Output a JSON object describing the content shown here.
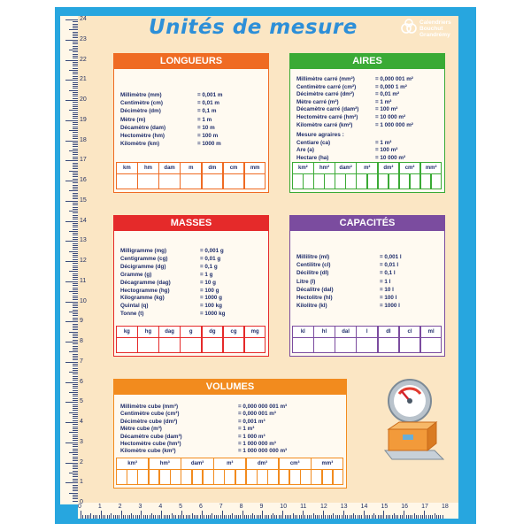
{
  "title": "Unités de mesure",
  "logo": [
    "Calendriers",
    "Bouchut",
    "Grandrémy"
  ],
  "sections": [
    {
      "heading": "LONGUEURS",
      "rows": [
        [
          "Millimètre (mm)",
          "= 0,001 m"
        ],
        [
          "Centimètre (cm)",
          "= 0,01 m"
        ],
        [
          "Décimètre  (dm)",
          "= 0,1 m"
        ],
        [
          "Mètre  (m)",
          "= 1 m"
        ],
        [
          "Décamètre  (dam)",
          "= 10 m"
        ],
        [
          "Hectomètre  (hm)",
          "= 100 m"
        ],
        [
          "Kilomètre  (km)",
          "= 1000 m"
        ]
      ],
      "columns": [
        "km",
        "hm",
        "dam",
        "m",
        "dm",
        "cm",
        "mm"
      ]
    },
    {
      "heading": "AIRES",
      "rows": [
        [
          "Millimètre carré (mm²)",
          "= 0,000 001 m²"
        ],
        [
          "Centimètre carré (cm²)",
          "= 0,000 1 m²"
        ],
        [
          "Décimètre carré (dm²)",
          "= 0,01 m²"
        ],
        [
          "Mètre carré  (m²)",
          "= 1 m²"
        ],
        [
          "Décamètre carré  (dam²)",
          "= 100 m²"
        ],
        [
          "Hectomètre carré (hm²)",
          "= 10 000 m²"
        ],
        [
          "Kilomètre carré  (km²)",
          "= 1 000 000 m²"
        ]
      ],
      "subheading": "Mesure agraires :",
      "extra_rows": [
        [
          "Centiare (ca)",
          "= 1 m²"
        ],
        [
          "Are (a)",
          "= 100 m²"
        ],
        [
          "Hectare (ha)",
          "= 10 000 m²"
        ]
      ],
      "columns": [
        "km²",
        "hm²",
        "dam²",
        "m²",
        "dm²",
        "cm²",
        "mm²"
      ]
    },
    {
      "heading": "MASSES",
      "rows": [
        [
          "Milligramme (mg)",
          "= 0,001 g"
        ],
        [
          "Centigramme (cg)",
          "= 0,01 g"
        ],
        [
          "Décigramme (dg)",
          "= 0,1 g"
        ],
        [
          "Gramme (g)",
          "= 1 g"
        ],
        [
          "Décagramme (dag)",
          "= 10 g"
        ],
        [
          "Hectogramme (hg)",
          "= 100 g"
        ],
        [
          "Kilogramme (kg)",
          "= 1000 g"
        ],
        [
          "Quintal (q)",
          "= 100 kg"
        ],
        [
          "Tonne (t)",
          "= 1000 kg"
        ]
      ],
      "columns": [
        "kg",
        "hg",
        "dag",
        "g",
        "dg",
        "cg",
        "mg"
      ]
    },
    {
      "heading": "CAPACITÉS",
      "rows": [
        [
          "Millilitre (ml)",
          "= 0,001 l"
        ],
        [
          "Centilitre (cl)",
          "= 0,01 l"
        ],
        [
          "Décilitre (dl)",
          "= 0,1 l"
        ],
        [
          "Litre (l)",
          "= 1 l"
        ],
        [
          "Décalitre (dal)",
          "= 10 l"
        ],
        [
          "Hectolitre (hl)",
          "= 100 l"
        ],
        [
          "Kilolitre (kl)",
          "= 1000 l"
        ]
      ],
      "columns": [
        "kl",
        "hl",
        "dal",
        "l",
        "dl",
        "cl",
        "ml"
      ]
    },
    {
      "heading": "VOLUMES",
      "rows": [
        [
          "Millimètre cube (mm³)",
          "= 0,000 000 001 m³"
        ],
        [
          "Centimètre cube (cm³)",
          "= 0,000 001 m³"
        ],
        [
          "Décimètre cube (dm³)",
          "= 0,001 m³"
        ],
        [
          "Mètre cube (m³)",
          "= 1 m³"
        ],
        [
          "Décamètre cube (dam³)",
          "= 1 000 m³"
        ],
        [
          "Hectomètre cube (hm³)",
          "= 1 000 000 m³"
        ],
        [
          "Kilomètre cube (km³)",
          "= 1 000 000 000 m³"
        ]
      ],
      "columns": [
        "km³",
        "hm³",
        "dam³",
        "m³",
        "dm³",
        "cm³",
        "mm³"
      ]
    }
  ],
  "ruler": {
    "left": [
      "24",
      "23",
      "22",
      "21",
      "20",
      "19",
      "18",
      "17",
      "16",
      "15",
      "14",
      "13",
      "12",
      "11",
      "10",
      "9",
      "8",
      "7",
      "6",
      "5",
      "4",
      "3",
      "2",
      "1",
      "0"
    ],
    "bottom": [
      "0",
      "1",
      "2",
      "3",
      "4",
      "5",
      "6",
      "7",
      "8",
      "9",
      "10",
      "11",
      "12",
      "13",
      "14",
      "15",
      "16",
      "17",
      "18"
    ]
  }
}
